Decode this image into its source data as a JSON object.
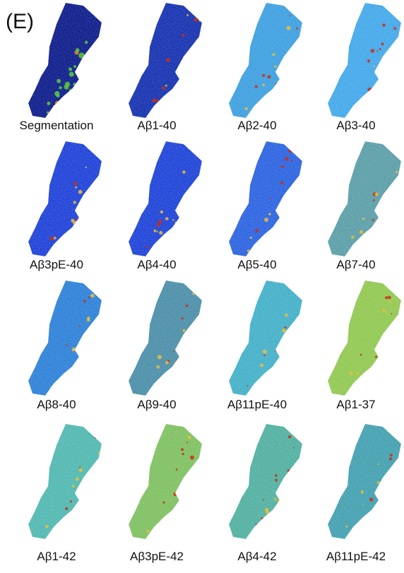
{
  "panel_label": "(E)",
  "tiles": [
    {
      "label": "Segmentation",
      "color": "#0b1a8a"
    },
    {
      "label": "Aβ1-40",
      "color": "#1430b0"
    },
    {
      "label": "Aβ2-40",
      "color": "#3c9fe0"
    },
    {
      "label": "Aβ3-40",
      "color": "#42a8ea"
    },
    {
      "label": "Aβ3pE-40",
      "color": "#1c40d8"
    },
    {
      "label": "Aβ4-40",
      "color": "#1c42d8"
    },
    {
      "label": "Aβ5-40",
      "color": "#2a62e0"
    },
    {
      "label": "Aβ7-40",
      "color": "#5a9ea8"
    },
    {
      "label": "Aβ8-40",
      "color": "#2c80d8"
    },
    {
      "label": "Aβ9-40",
      "color": "#4a8ea8"
    },
    {
      "label": "Aβ11pE-40",
      "color": "#42b0c8"
    },
    {
      "label": "Aβ1-37",
      "color": "#90c850"
    },
    {
      "label": "Aβ1-42",
      "color": "#50b8b0"
    },
    {
      "label": "Aβ3pE-42",
      "color": "#7ec060"
    },
    {
      "label": "Aβ4-42",
      "color": "#50b0a0"
    },
    {
      "label": "Aβ11pE-42",
      "color": "#42a0b0"
    }
  ]
}
